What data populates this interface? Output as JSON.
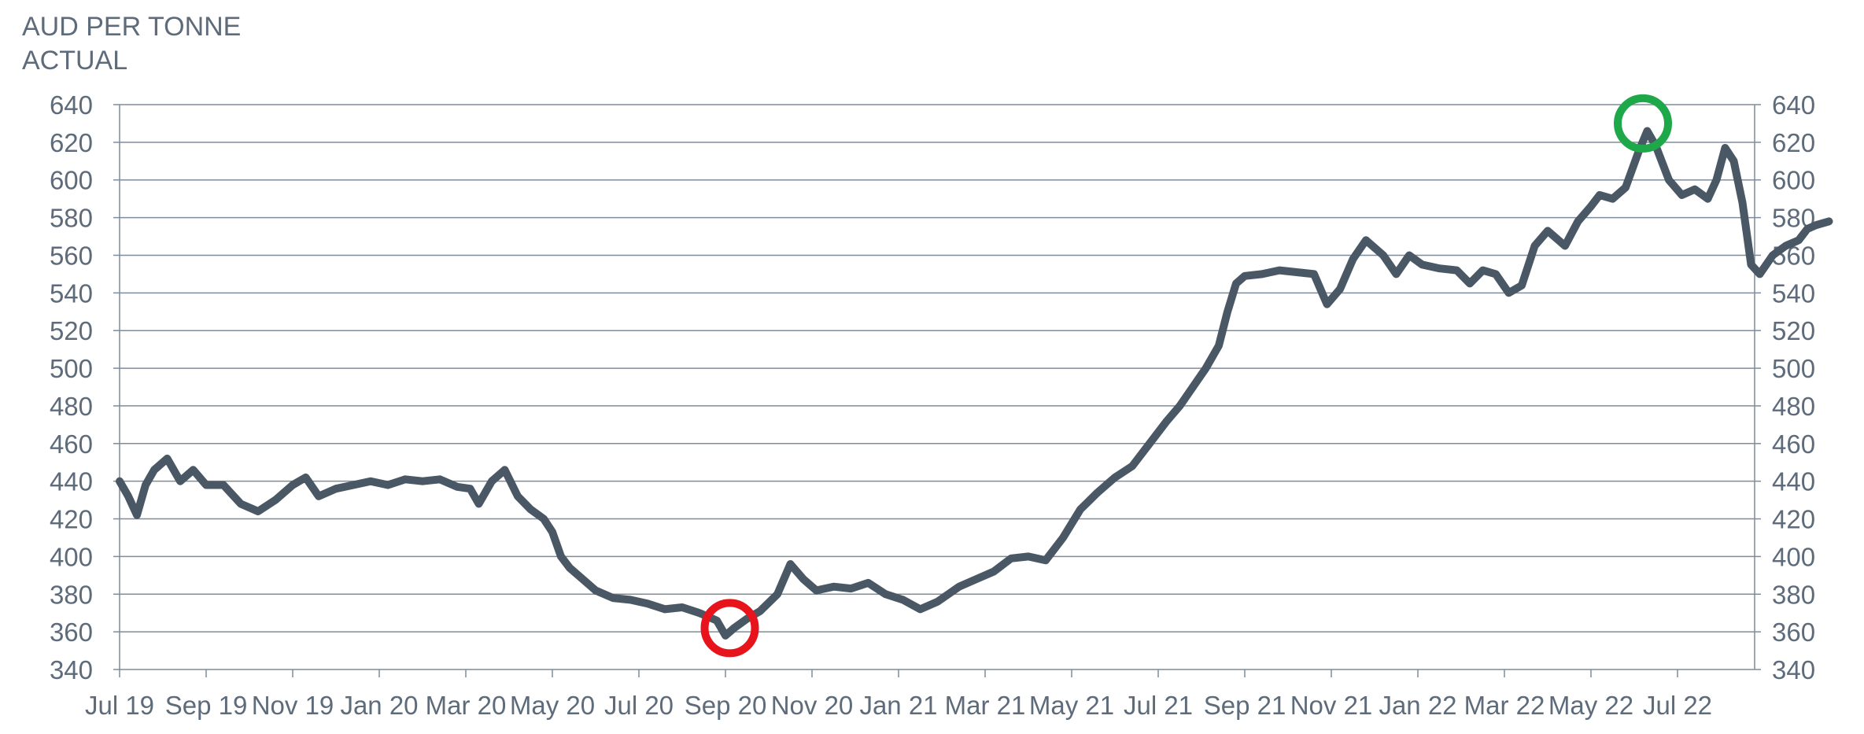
{
  "header": {
    "unit_line1": "AUD PER TONNE",
    "unit_line2": "ACTUAL"
  },
  "chart_data": {
    "type": "line",
    "title": "",
    "ylabel": "AUD PER TONNE ACTUAL",
    "ylim": [
      340,
      640
    ],
    "yticks": [
      340,
      360,
      380,
      400,
      420,
      440,
      460,
      480,
      500,
      520,
      540,
      560,
      580,
      600,
      620,
      640
    ],
    "x_tick_labels": [
      "Jul 19",
      "Sep 19",
      "Nov 19",
      "Jan 20",
      "Mar 20",
      "May 20",
      "Jul 20",
      "Sep 20",
      "Nov 20",
      "Jan 21",
      "Mar 21",
      "May 21",
      "Jul 21",
      "Sep 21",
      "Nov 21",
      "Jan 22",
      "Mar 22",
      "May 22",
      "Jul 22"
    ],
    "grid": "horizontal",
    "colors": {
      "line": "#4a5866",
      "grid": "#7f8c99",
      "axis_text": "#5d6b7a",
      "low_marker": "#e8141b",
      "high_marker": "#1fa84a"
    },
    "series": [
      {
        "points": [
          [
            0,
            440
          ],
          [
            0.1,
            432
          ],
          [
            0.2,
            422
          ],
          [
            0.3,
            438
          ],
          [
            0.4,
            446
          ],
          [
            0.55,
            452
          ],
          [
            0.7,
            440
          ],
          [
            0.85,
            446
          ],
          [
            1.0,
            438
          ],
          [
            1.2,
            438
          ],
          [
            1.4,
            428
          ],
          [
            1.6,
            424
          ],
          [
            1.8,
            430
          ],
          [
            2.0,
            438
          ],
          [
            2.15,
            442
          ],
          [
            2.3,
            432
          ],
          [
            2.5,
            436
          ],
          [
            2.7,
            438
          ],
          [
            2.9,
            440
          ],
          [
            3.1,
            438
          ],
          [
            3.3,
            441
          ],
          [
            3.5,
            440
          ],
          [
            3.7,
            441
          ],
          [
            3.9,
            437
          ],
          [
            4.05,
            436
          ],
          [
            4.15,
            428
          ],
          [
            4.3,
            440
          ],
          [
            4.45,
            446
          ],
          [
            4.6,
            432
          ],
          [
            4.75,
            425
          ],
          [
            4.9,
            420
          ],
          [
            5.0,
            413
          ],
          [
            5.1,
            400
          ],
          [
            5.2,
            394
          ],
          [
            5.35,
            388
          ],
          [
            5.5,
            382
          ],
          [
            5.7,
            378
          ],
          [
            5.9,
            377
          ],
          [
            6.1,
            375
          ],
          [
            6.3,
            372
          ],
          [
            6.5,
            373
          ],
          [
            6.7,
            370
          ],
          [
            6.9,
            366
          ],
          [
            7.0,
            358
          ],
          [
            7.1,
            362
          ],
          [
            7.25,
            367
          ],
          [
            7.4,
            371
          ],
          [
            7.6,
            380
          ],
          [
            7.75,
            396
          ],
          [
            7.9,
            388
          ],
          [
            8.05,
            382
          ],
          [
            8.25,
            384
          ],
          [
            8.45,
            383
          ],
          [
            8.65,
            386
          ],
          [
            8.85,
            380
          ],
          [
            9.05,
            377
          ],
          [
            9.25,
            372
          ],
          [
            9.45,
            376
          ],
          [
            9.7,
            384
          ],
          [
            9.9,
            388
          ],
          [
            10.1,
            392
          ],
          [
            10.3,
            399
          ],
          [
            10.5,
            400
          ],
          [
            10.7,
            398
          ],
          [
            10.9,
            410
          ],
          [
            11.1,
            425
          ],
          [
            11.3,
            434
          ],
          [
            11.5,
            442
          ],
          [
            11.7,
            448
          ],
          [
            11.9,
            460
          ],
          [
            12.1,
            472
          ],
          [
            12.25,
            480
          ],
          [
            12.4,
            490
          ],
          [
            12.55,
            500
          ],
          [
            12.7,
            512
          ],
          [
            12.8,
            530
          ],
          [
            12.9,
            545
          ],
          [
            13.0,
            549
          ],
          [
            13.2,
            550
          ],
          [
            13.4,
            552
          ],
          [
            13.6,
            551
          ],
          [
            13.8,
            550
          ],
          [
            13.95,
            534
          ],
          [
            14.1,
            542
          ],
          [
            14.25,
            558
          ],
          [
            14.4,
            568
          ],
          [
            14.6,
            560
          ],
          [
            14.75,
            550
          ],
          [
            14.9,
            560
          ],
          [
            15.05,
            555
          ],
          [
            15.25,
            553
          ],
          [
            15.45,
            552
          ],
          [
            15.6,
            545
          ],
          [
            15.75,
            552
          ],
          [
            15.9,
            550
          ],
          [
            16.05,
            540
          ],
          [
            16.2,
            544
          ],
          [
            16.35,
            565
          ],
          [
            16.5,
            573
          ],
          [
            16.7,
            565
          ],
          [
            16.85,
            578
          ],
          [
            17.0,
            586
          ],
          [
            17.1,
            592
          ],
          [
            17.25,
            590
          ],
          [
            17.4,
            596
          ],
          [
            17.55,
            615
          ],
          [
            17.65,
            626
          ],
          [
            17.75,
            618
          ],
          [
            17.9,
            600
          ],
          [
            18.05,
            592
          ],
          [
            18.2,
            595
          ],
          [
            18.35,
            590
          ],
          [
            18.45,
            600
          ],
          [
            18.55,
            617
          ],
          [
            18.65,
            610
          ],
          [
            18.75,
            588
          ],
          [
            18.85,
            555
          ],
          [
            18.95,
            550
          ],
          [
            19.1,
            560
          ],
          [
            19.25,
            565
          ],
          [
            19.4,
            568
          ],
          [
            19.5,
            574
          ],
          [
            19.6,
            576
          ],
          [
            19.75,
            578
          ]
        ]
      }
    ],
    "annotations": [
      {
        "type": "circle",
        "label": "low",
        "x": 7.05,
        "y": 362,
        "color": "#e8141b"
      },
      {
        "type": "circle",
        "label": "high",
        "x": 17.6,
        "y": 630,
        "color": "#1fa84a"
      }
    ]
  }
}
